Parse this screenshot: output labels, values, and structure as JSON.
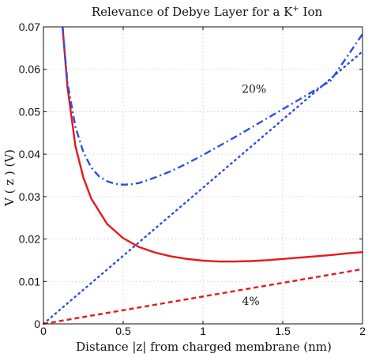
{
  "chart_data": {
    "type": "line",
    "title": "Relevance of Debye Layer for a K",
    "title_superscript": "+",
    "title_suffix": " Ion",
    "xlabel": "Distance |z| from charged membrane (nm)",
    "ylabel": "V ( z )   (V)",
    "xlim": [
      0,
      2
    ],
    "ylim": [
      0,
      0.07
    ],
    "grid": true,
    "x_ticks": [
      0,
      0.5,
      1,
      1.5,
      2
    ],
    "x_tick_labels": [
      "0",
      "0.5",
      "1",
      "1.5",
      "2"
    ],
    "y_ticks": [
      0,
      0.01,
      0.02,
      0.03,
      0.04,
      0.05,
      0.06,
      0.07
    ],
    "y_tick_labels": [
      "0",
      "0.01",
      "0.02",
      "0.03",
      "0.04",
      "0.05",
      "0.06",
      "0.07"
    ],
    "annotations": [
      {
        "text": "20%",
        "x": 1.32,
        "y": 0.0545
      },
      {
        "text": "4%",
        "x": 1.3,
        "y": 0.0045
      }
    ],
    "series": [
      {
        "style": "solid",
        "color": "#e8171b",
        "x": [
          0.12,
          0.15,
          0.2,
          0.25,
          0.3,
          0.4,
          0.5,
          0.6,
          0.7,
          0.8,
          0.9,
          1.0,
          1.1,
          1.2,
          1.3,
          1.4,
          1.5,
          1.6,
          1.7,
          1.8,
          1.9,
          2.0
        ],
        "y": [
          0.07,
          0.056,
          0.042,
          0.0345,
          0.0295,
          0.0235,
          0.0202,
          0.0181,
          0.0168,
          0.0159,
          0.0153,
          0.0149,
          0.0147,
          0.0147,
          0.0148,
          0.015,
          0.0153,
          0.0156,
          0.0159,
          0.0162,
          0.0166,
          0.0169
        ]
      },
      {
        "style": "dashdot",
        "color": "#2b4de6",
        "x": [
          0.12,
          0.15,
          0.2,
          0.25,
          0.3,
          0.35,
          0.4,
          0.45,
          0.5,
          0.55,
          0.6,
          0.7,
          0.8,
          0.9,
          1.0,
          1.2,
          1.4,
          1.6,
          1.8,
          2.0
        ],
        "y": [
          0.07,
          0.057,
          0.0465,
          0.0405,
          0.0368,
          0.0347,
          0.0336,
          0.033,
          0.0328,
          0.0329,
          0.0332,
          0.0345,
          0.036,
          0.0378,
          0.0398,
          0.044,
          0.0484,
          0.0528,
          0.0573,
          0.0683
        ]
      },
      {
        "style": "dotted",
        "color": "#2b4de6",
        "x": [
          0,
          2
        ],
        "y": [
          0,
          0.0642
        ]
      },
      {
        "style": "dashed",
        "color": "#e8171b",
        "x": [
          0,
          2
        ],
        "y": [
          0,
          0.0129
        ]
      }
    ]
  }
}
